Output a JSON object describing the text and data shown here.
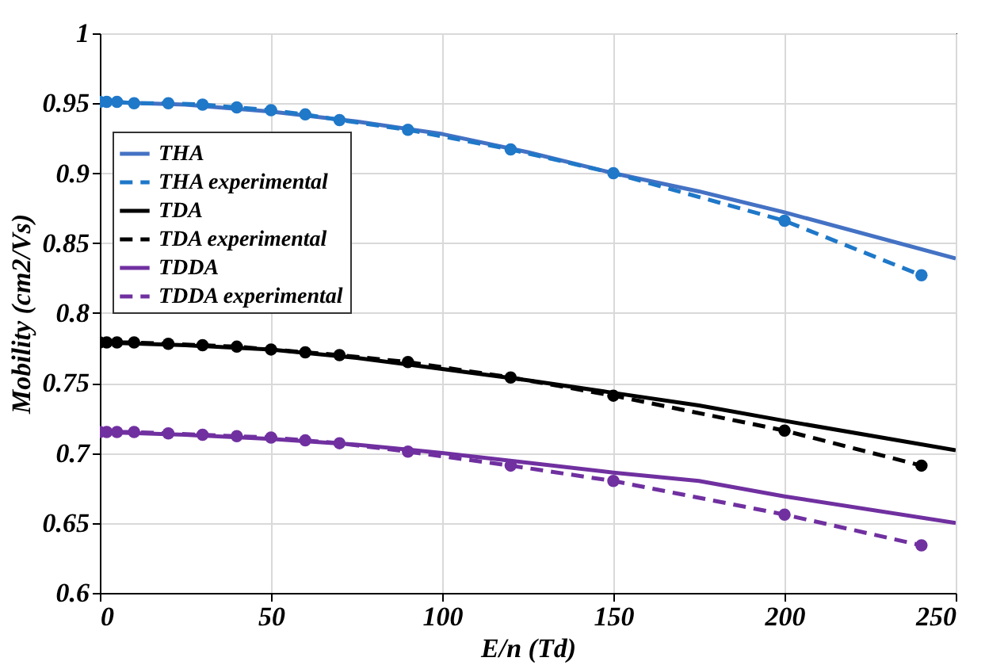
{
  "chart_data": {
    "type": "line",
    "xlabel": "E/n (Td)",
    "ylabel": "Mobility (cm2/Vs)",
    "xlim": [
      0,
      250
    ],
    "xticks": [
      0,
      50,
      100,
      150,
      200,
      250
    ],
    "ylim": [
      0.6,
      1
    ],
    "yticks": [
      0.6,
      0.65,
      0.7,
      0.75,
      0.8,
      0.85,
      0.9,
      0.95,
      1
    ],
    "grid": true,
    "legend": "left",
    "series": [
      {
        "name": "THA",
        "color": "#4472c4",
        "line_style": "solid",
        "marker": "none",
        "x": [
          0,
          25,
          50,
          75,
          100,
          125,
          150,
          175,
          200,
          250
        ],
        "values": [
          0.951,
          0.949,
          0.944,
          0.937,
          0.928,
          0.915,
          0.9,
          0.887,
          0.872,
          0.839
        ]
      },
      {
        "name": "THA experimental",
        "color": "#1f78c8",
        "line_style": "dashed",
        "marker": "circle",
        "x": [
          0,
          2,
          5,
          10,
          20,
          30,
          40,
          50,
          60,
          70,
          90,
          120,
          150,
          200,
          240
        ],
        "values": [
          0.951,
          0.951,
          0.951,
          0.95,
          0.95,
          0.949,
          0.947,
          0.945,
          0.942,
          0.938,
          0.931,
          0.917,
          0.9,
          0.866,
          0.827
        ]
      },
      {
        "name": "TDA",
        "color": "#000000",
        "line_style": "solid",
        "marker": "none",
        "x": [
          0,
          25,
          50,
          75,
          100,
          125,
          150,
          175,
          200,
          250
        ],
        "values": [
          0.779,
          0.777,
          0.774,
          0.768,
          0.76,
          0.752,
          0.743,
          0.734,
          0.723,
          0.702
        ]
      },
      {
        "name": "TDA experimental",
        "color": "#000000",
        "line_style": "dashed",
        "marker": "circle",
        "x": [
          0,
          2,
          5,
          10,
          20,
          30,
          40,
          50,
          60,
          70,
          90,
          120,
          150,
          200,
          240
        ],
        "values": [
          0.779,
          0.779,
          0.779,
          0.779,
          0.778,
          0.777,
          0.776,
          0.774,
          0.772,
          0.77,
          0.765,
          0.754,
          0.741,
          0.716,
          0.691
        ]
      },
      {
        "name": "TDDA",
        "color": "#7030a0",
        "line_style": "solid",
        "marker": "none",
        "x": [
          0,
          25,
          50,
          75,
          100,
          125,
          150,
          175,
          200,
          250
        ],
        "values": [
          0.715,
          0.713,
          0.71,
          0.706,
          0.7,
          0.693,
          0.686,
          0.68,
          0.669,
          0.65
        ]
      },
      {
        "name": "TDDA experimental",
        "color": "#7030a0",
        "line_style": "dashed",
        "marker": "circle",
        "x": [
          0,
          2,
          5,
          10,
          20,
          30,
          40,
          50,
          60,
          70,
          90,
          120,
          150,
          200,
          240
        ],
        "values": [
          0.715,
          0.715,
          0.715,
          0.715,
          0.714,
          0.713,
          0.712,
          0.711,
          0.709,
          0.707,
          0.701,
          0.691,
          0.68,
          0.656,
          0.634
        ]
      }
    ]
  }
}
